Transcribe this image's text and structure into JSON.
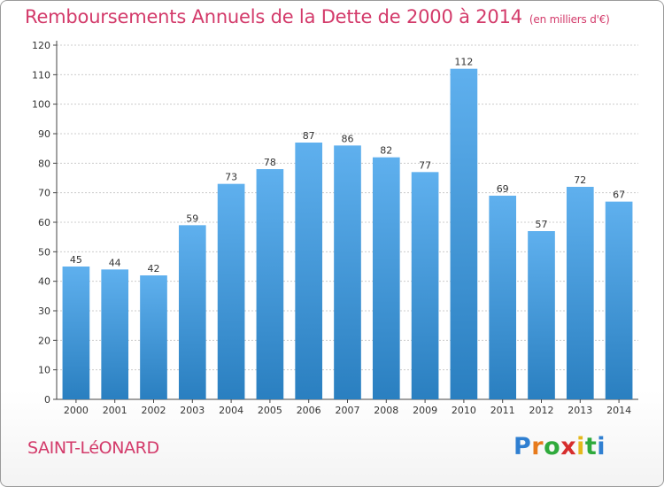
{
  "header": {
    "title": "Remboursements Annuels de la Dette de 2000 à 2014",
    "unit": "(en milliers d'€)"
  },
  "footer": {
    "location": "SAINT-LéONARD",
    "brand": [
      "P",
      "r",
      "o",
      "x",
      "i",
      "t",
      "i"
    ]
  },
  "colors": {
    "title": "#d33a6a",
    "bar_top": "#5fb0ee",
    "bar_bottom": "#2a7fc0",
    "grid": "#cccccc"
  },
  "chart_data": {
    "type": "bar",
    "title": "Remboursements Annuels de la Dette de 2000 à 2014",
    "subtitle": "(en milliers d'€)",
    "categories": [
      "2000",
      "2001",
      "2002",
      "2003",
      "2004",
      "2005",
      "2006",
      "2007",
      "2008",
      "2009",
      "2010",
      "2011",
      "2012",
      "2013",
      "2014"
    ],
    "values": [
      45,
      44,
      42,
      59,
      73,
      78,
      87,
      86,
      82,
      77,
      112,
      69,
      57,
      72,
      67
    ],
    "ylim": [
      0,
      120
    ],
    "yticks": [
      0,
      10,
      20,
      30,
      40,
      50,
      60,
      70,
      80,
      90,
      100,
      110,
      120
    ],
    "grid": true,
    "data_labels": true
  }
}
